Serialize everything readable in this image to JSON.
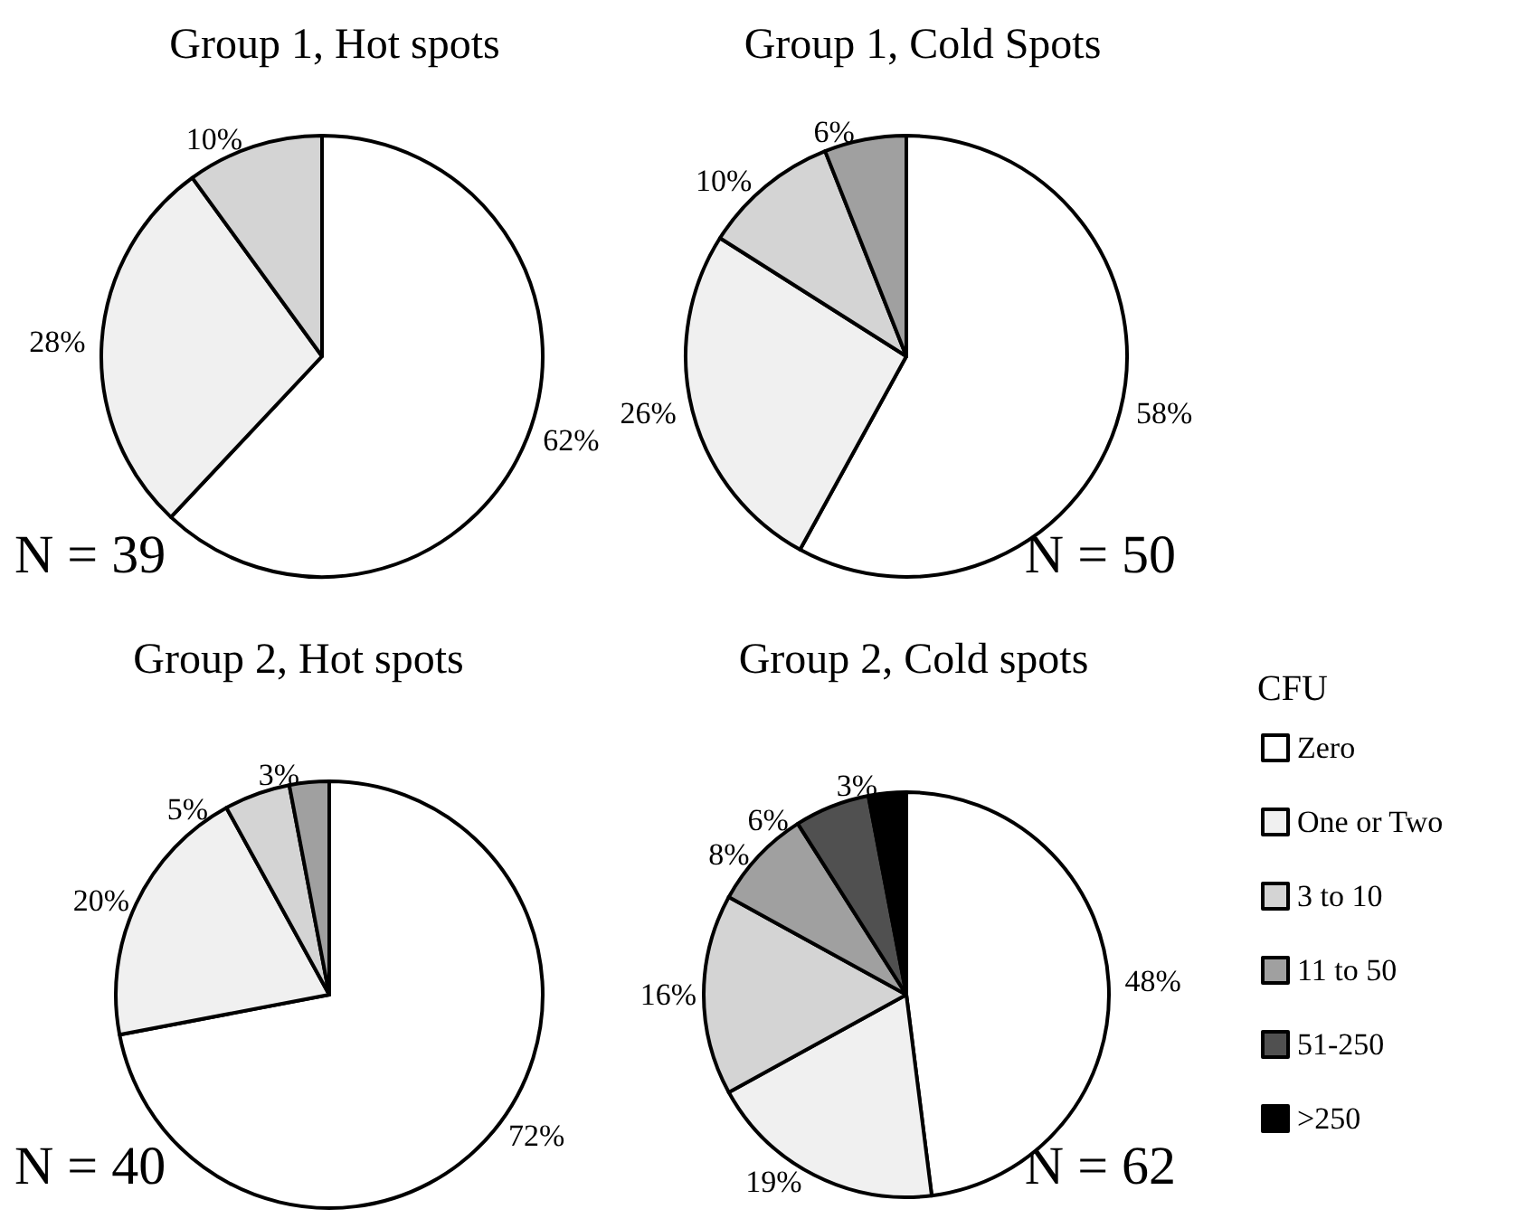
{
  "chart_data": [
    {
      "type": "pie",
      "title": "Group 1, Hot spots",
      "categories": [
        null,
        null,
        null
      ],
      "values": [
        62,
        28,
        10
      ],
      "value_labels": [
        "62%",
        "28%",
        "10%"
      ],
      "colors": [
        "#ffffff",
        "#f0f0f0",
        "#d4d4d4"
      ],
      "annotations": [
        "N = 39"
      ]
    },
    {
      "type": "pie",
      "title": "Group 1, Cold Spots",
      "categories": [
        null,
        null,
        null,
        null
      ],
      "values": [
        58,
        26,
        10,
        6
      ],
      "value_labels": [
        "58%",
        "26%",
        "10%",
        "6%"
      ],
      "colors": [
        "#ffffff",
        "#f0f0f0",
        "#d4d4d4",
        "#a0a0a0"
      ],
      "annotations": [
        "N = 50"
      ]
    },
    {
      "type": "pie",
      "title": "Group 2, Hot spots",
      "categories": [
        null,
        null,
        null,
        null
      ],
      "values": [
        72,
        20,
        5,
        3
      ],
      "value_labels": [
        "72%",
        "20%",
        "5%",
        "3%"
      ],
      "colors": [
        "#ffffff",
        "#f0f0f0",
        "#d4d4d4",
        "#a0a0a0"
      ],
      "annotations": [
        "N = 40"
      ]
    },
    {
      "type": "pie",
      "title": "Group 2, Cold spots",
      "categories": [
        "Zero",
        "One or Two",
        "3 to 10",
        "11 to 50",
        "51-250",
        ">250"
      ],
      "values": [
        48,
        19,
        16,
        8,
        6,
        3
      ],
      "value_labels": [
        "48%",
        "19%",
        "16%",
        "8%",
        "6%",
        "3%"
      ],
      "colors": [
        "#ffffff",
        "#f0f0f0",
        "#d4d4d4",
        "#a0a0a0",
        "#505050",
        "#000000"
      ],
      "annotations": [
        "N = 62"
      ],
      "legend": "right",
      "legend_title": "CFU"
    }
  ]
}
